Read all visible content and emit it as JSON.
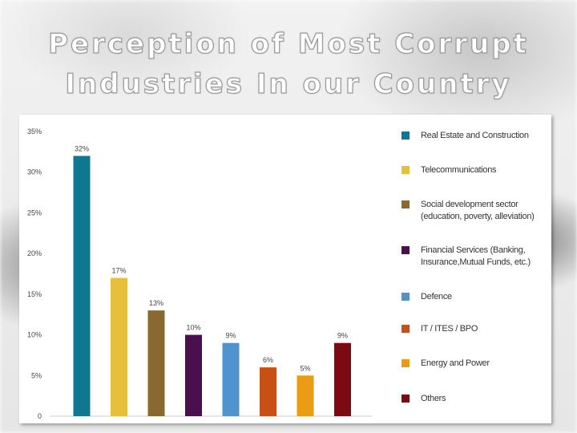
{
  "slide": {
    "title_line1": "Perception of Most Corrupt",
    "title_line2": "Industries In our Country"
  },
  "chart_data": {
    "type": "bar",
    "title": "Perception of Most Corrupt Industries In our Country",
    "categories": [
      "Real Estate and Construction",
      "Telecommunications",
      "Social development sector (education, poverty, alleviation)",
      "Financial Services (Banking, Insurance,Mutual Funds, etc.)",
      "Defence",
      "IT / ITES / BPO",
      "Energy and Power",
      "Others"
    ],
    "values": [
      32,
      17,
      13,
      10,
      9,
      6,
      5,
      9
    ],
    "value_labels": [
      "32%",
      "17%",
      "13%",
      "10%",
      "9%",
      "6%",
      "5%",
      "9%"
    ],
    "colors": [
      "#0f7891",
      "#e8bf3c",
      "#8a6930",
      "#4a0f4f",
      "#4f93cf",
      "#c95014",
      "#e99c14",
      "#7c0a12"
    ],
    "ylim": [
      0,
      35
    ],
    "yticks": [
      0,
      5,
      10,
      15,
      20,
      25,
      30,
      35
    ],
    "ytick_labels": [
      "0",
      "5%",
      "10%",
      "15%",
      "20%",
      "25%",
      "30%",
      "35%"
    ],
    "legend_position": "right",
    "grid": false
  }
}
